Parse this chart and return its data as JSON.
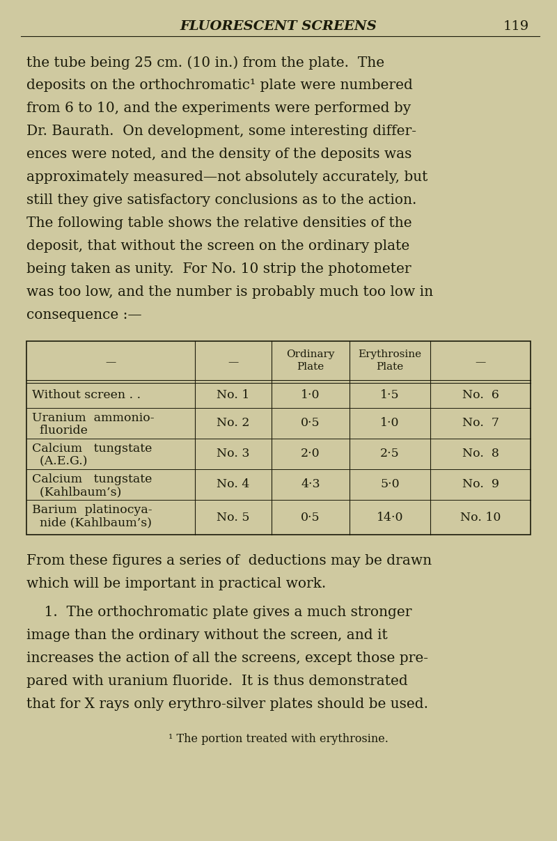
{
  "bg_color": "#cfc9a0",
  "text_color": "#1a1a0a",
  "page_width": 8.0,
  "page_height": 12.08,
  "header_title": "FLUORESCENT SCREENS",
  "header_page": "119",
  "p1_lines": [
    "the tube being 25 cm. (10 in.) from the plate.  The",
    "deposits on the orthochromatic¹ plate were numbered",
    "from 6 to 10, and the experiments were performed by",
    "Dr. Baurath.  On development, some interesting differ-",
    "ences were noted, and the density of the deposits was",
    "approximately measured—not absolutely accurately, but",
    "still they give satisfactory conclusions as to the action.",
    "The following table shows the relative densities of the",
    "deposit, that without the screen on the ordinary plate",
    "being taken as unity.  For No. 10 strip the photometer",
    "was too low, and the number is probably much too low in",
    "consequence :—"
  ],
  "table_rows": [
    [
      "Without screen . .",
      "No. 1",
      "1·0",
      "1·5",
      "No.  6"
    ],
    [
      "Uranium  ammonio-",
      "No. 2",
      "0·5",
      "1·0",
      "No.  7"
    ],
    [
      "  fluoride",
      "",
      "",
      "",
      ""
    ],
    [
      "Calcium   tungstate",
      "No. 3",
      "2·0",
      "2·5",
      "No.  8"
    ],
    [
      "  (A.E.G.)",
      "",
      "",
      "",
      ""
    ],
    [
      "Calcium   tungstate",
      "No. 4",
      "4·3",
      "5·0",
      "No.  9"
    ],
    [
      "  (Kahlbaum’s)",
      "",
      "",
      "",
      ""
    ],
    [
      "Barium  platinocya-",
      "No. 5",
      "0·5",
      "14·0",
      "No. 10"
    ],
    [
      "  nide (Kahlbaum’s)",
      "",
      "",
      "",
      ""
    ]
  ],
  "p2_lines": [
    "From these figures a series of  deductions may be drawn",
    "which will be important in practical work."
  ],
  "p3_lines": [
    "    1.  The orthochromatic plate gives a much stronger",
    "image than the ordinary without the screen, and it",
    "increases the action of all the screens, except those pre-",
    "pared with uranium fluoride.  It is thus demonstrated",
    "that for X rays only erythro-silver plates should be used."
  ],
  "footnote": "¹ The portion treated with erythrosine."
}
